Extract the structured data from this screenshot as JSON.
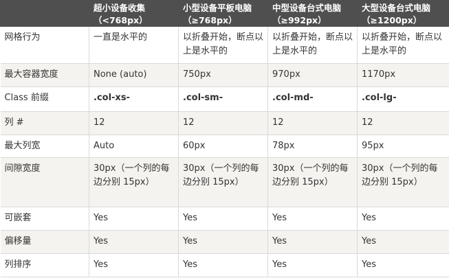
{
  "headers": [
    "",
    "超小设备收集",
    "小型设备平板电脑",
    "中型设备台式电脑",
    "大型设备台式电脑"
  ],
  "header_subs": [
    "",
    "（<768px）",
    "（≥768px）",
    "（≥992px）",
    "（≥1200px）"
  ],
  "rows": [
    {
      "label": "网格行为",
      "cells": [
        "一直是水平的",
        "以折叠开始，断点以上是水平的",
        "以折叠开始，断点以上是水平的",
        "以折叠开始，断点以上是水平的"
      ]
    },
    {
      "label": "最大容器宽度",
      "cells": [
        "None (auto)",
        "750px",
        "970px",
        "1170px"
      ]
    },
    {
      "label": "Class 前缀",
      "cells": [
        ".col-xs-",
        ".col-sm-",
        ".col-md-",
        ".col-lg-"
      ]
    },
    {
      "label": "列 #",
      "cells": [
        "12",
        "12",
        "12",
        "12"
      ]
    },
    {
      "label": "最大列宽",
      "cells": [
        "Auto",
        "60px",
        "78px",
        "95px"
      ]
    },
    {
      "label": "间隙宽度",
      "cells": [
        "30px（一个列的每边分别 15px）",
        "30px（一个列的每边分别 15px）",
        "30px（一个列的每边分别 15px）",
        "30px（一个列的每边分别 15px）"
      ]
    },
    {
      "label": "可嵌套",
      "cells": [
        "Yes",
        "Yes",
        "Yes",
        "Yes"
      ]
    },
    {
      "label": "偏移量",
      "cells": [
        "Yes",
        "Yes",
        "Yes",
        "Yes"
      ]
    },
    {
      "label": "列排序",
      "cells": [
        "Yes",
        "Yes",
        "Yes",
        "Yes"
      ]
    }
  ]
}
